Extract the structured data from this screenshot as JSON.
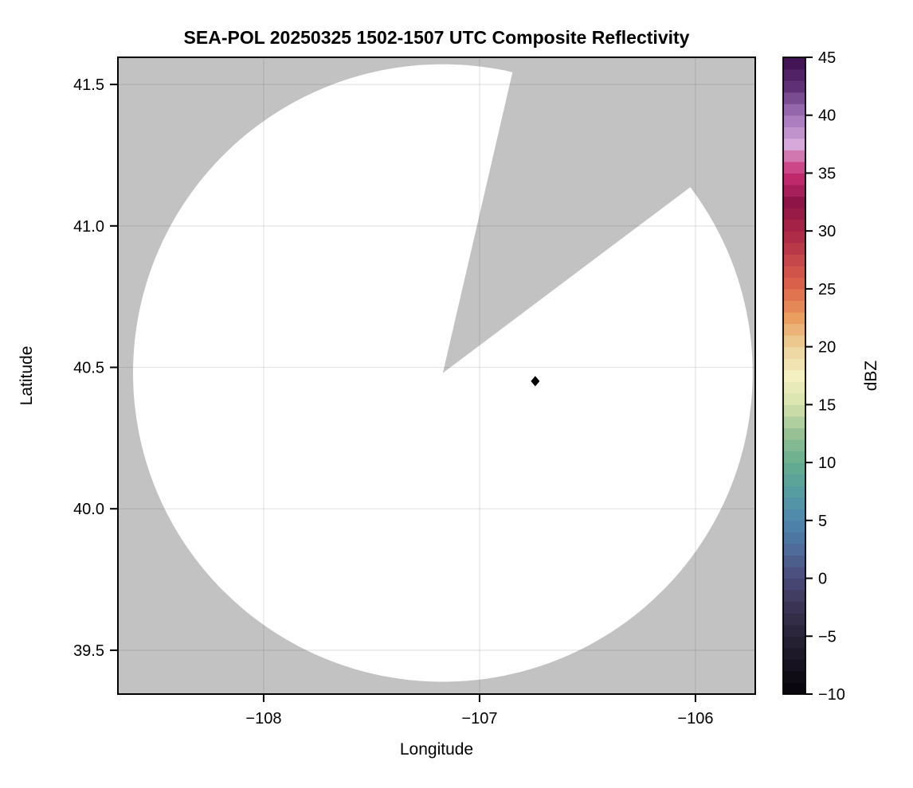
{
  "chart_data": {
    "type": "heatmap",
    "title": "SEA-POL 20250325 1502-1507 UTC Composite Reflectivity",
    "xlabel": "Longitude",
    "ylabel": "Latitude",
    "xlim": [
      -108.675,
      -105.723
    ],
    "ylim": [
      39.345,
      41.596
    ],
    "grid": true,
    "x_ticks": [
      {
        "value": -108,
        "label": "−108"
      },
      {
        "value": -107,
        "label": "−107"
      },
      {
        "value": -106,
        "label": "−106"
      }
    ],
    "y_ticks": [
      {
        "value": 41.5,
        "label": "41.5"
      },
      {
        "value": 41.0,
        "label": "41.0"
      },
      {
        "value": 40.5,
        "label": "40.5"
      },
      {
        "value": 40.0,
        "label": "40.0"
      },
      {
        "value": 39.5,
        "label": "39.5"
      }
    ],
    "colors": {
      "outside_coverage": "#c2c2c2",
      "coverage_no_echo": "#ffffff",
      "gridline": "rgba(60,60,60,0.13)",
      "frame": "#000000"
    },
    "radar": {
      "name": "SEA-POL coverage circle",
      "center_lon": -107.17,
      "center_lat": 40.48,
      "radius_km": 121.5,
      "missing_sector_azimuth_deg": [
        13,
        53
      ]
    },
    "marker": {
      "name": "site marker",
      "lon": -106.742,
      "lat": 40.451,
      "shape": "diamond",
      "color": "#000000"
    },
    "colorbar": {
      "label": "dBZ",
      "min": -10,
      "max": 45,
      "band_step": 1,
      "ticks": [
        {
          "value": 45,
          "label": "45"
        },
        {
          "value": 40,
          "label": "40"
        },
        {
          "value": 35,
          "label": "35"
        },
        {
          "value": 30,
          "label": "30"
        },
        {
          "value": 25,
          "label": "25"
        },
        {
          "value": 20,
          "label": "20"
        },
        {
          "value": 15,
          "label": "15"
        },
        {
          "value": 10,
          "label": "10"
        },
        {
          "value": 5,
          "label": "5"
        },
        {
          "value": 0,
          "label": "0"
        },
        {
          "value": -5,
          "label": "−5"
        },
        {
          "value": -10,
          "label": "−10"
        }
      ],
      "anchors": [
        {
          "value": -10,
          "color": "#060409"
        },
        {
          "value": -7.5,
          "color": "#17121f"
        },
        {
          "value": -5,
          "color": "#292336"
        },
        {
          "value": -2.5,
          "color": "#3a3353"
        },
        {
          "value": 0,
          "color": "#4a4a78"
        },
        {
          "value": 2.5,
          "color": "#4e6b9a"
        },
        {
          "value": 5,
          "color": "#4e87ae"
        },
        {
          "value": 7.5,
          "color": "#569da1"
        },
        {
          "value": 10,
          "color": "#66ad8e"
        },
        {
          "value": 12.5,
          "color": "#97c195"
        },
        {
          "value": 15,
          "color": "#d5e3ab"
        },
        {
          "value": 17.5,
          "color": "#f4f0c2"
        },
        {
          "value": 20,
          "color": "#edd29b"
        },
        {
          "value": 22.5,
          "color": "#ea9e5f"
        },
        {
          "value": 25,
          "color": "#de684c"
        },
        {
          "value": 27.5,
          "color": "#c64749"
        },
        {
          "value": 30,
          "color": "#a82546"
        },
        {
          "value": 32.5,
          "color": "#8e1448"
        },
        {
          "value": 35,
          "color": "#c92e74"
        },
        {
          "value": 37.5,
          "color": "#d6a9da"
        },
        {
          "value": 40,
          "color": "#a173b8"
        },
        {
          "value": 42.5,
          "color": "#5f3076"
        },
        {
          "value": 45,
          "color": "#3c0e4d"
        }
      ]
    }
  }
}
